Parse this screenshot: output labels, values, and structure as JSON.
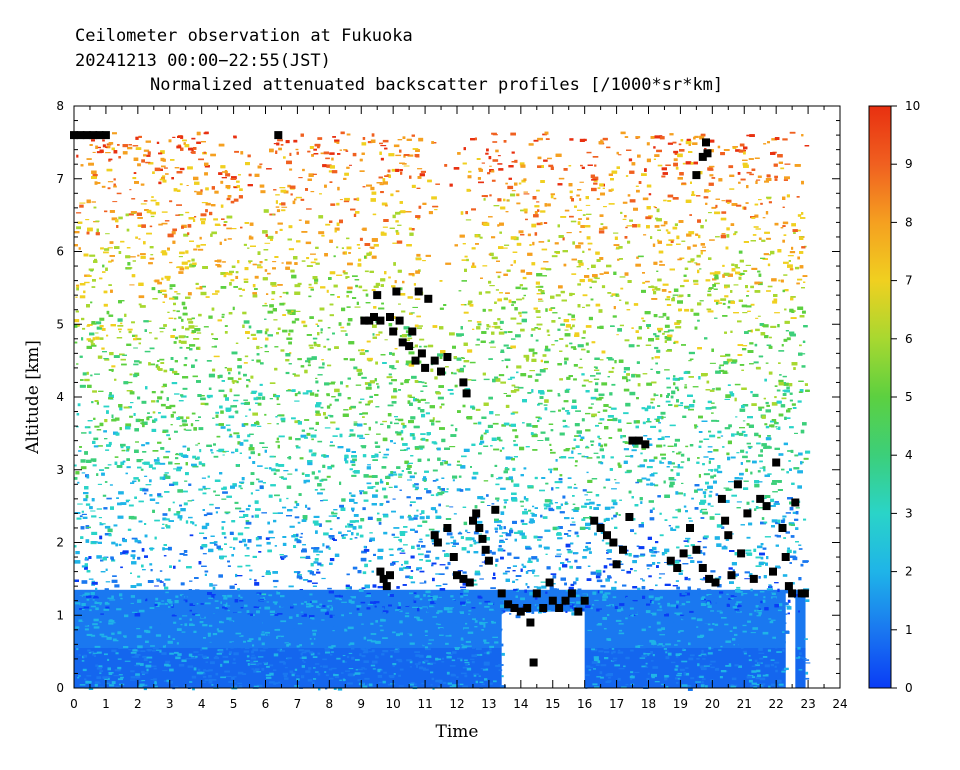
{
  "chart_data": {
    "type": "heatmap",
    "title_line1": "Ceilometer observation at Fukuoka",
    "title_line2": "20241213  00:00−22:55(JST)",
    "title_line3": "Normalized attenuated backscatter profiles [/1000*sr*km]",
    "xlabel": "Time",
    "ylabel": "Altitude [km]",
    "xlim": [
      0,
      24
    ],
    "ylim": [
      0,
      8
    ],
    "x_ticks": [
      "0",
      "1",
      "2",
      "3",
      "4",
      "5",
      "6",
      "7",
      "8",
      "9",
      "10",
      "11",
      "12",
      "13",
      "14",
      "15",
      "16",
      "17",
      "18",
      "19",
      "20",
      "21",
      "22",
      "23",
      "24"
    ],
    "y_ticks": [
      "0",
      "1",
      "2",
      "3",
      "4",
      "5",
      "6",
      "7",
      "8"
    ],
    "colorbar": {
      "range": [
        0,
        10
      ],
      "ticks": [
        "0",
        "1",
        "2",
        "3",
        "4",
        "5",
        "6",
        "7",
        "8",
        "9",
        "10"
      ],
      "colors": [
        "#0a3cf5",
        "#1a78f0",
        "#1fb4e8",
        "#2ad4c8",
        "#3ccf7a",
        "#5cd040",
        "#a8d830",
        "#f0d020",
        "#f5a020",
        "#f06020",
        "#e83010"
      ]
    },
    "data_end_time": 22.92,
    "cloud_base_points": [
      [
        0.0,
        7.6
      ],
      [
        0.2,
        7.6
      ],
      [
        0.4,
        7.6
      ],
      [
        0.6,
        7.6
      ],
      [
        0.8,
        7.6
      ],
      [
        1.0,
        7.6
      ],
      [
        6.4,
        7.6
      ],
      [
        9.1,
        5.05
      ],
      [
        9.25,
        5.05
      ],
      [
        9.4,
        5.1
      ],
      [
        9.5,
        5.4
      ],
      [
        9.6,
        5.05
      ],
      [
        9.9,
        5.1
      ],
      [
        10.0,
        4.9
      ],
      [
        10.1,
        5.45
      ],
      [
        10.2,
        5.05
      ],
      [
        10.3,
        4.75
      ],
      [
        10.5,
        4.7
      ],
      [
        10.6,
        4.9
      ],
      [
        10.7,
        4.5
      ],
      [
        10.8,
        5.45
      ],
      [
        10.9,
        4.6
      ],
      [
        11.0,
        4.4
      ],
      [
        11.1,
        5.35
      ],
      [
        11.3,
        4.5
      ],
      [
        11.5,
        4.35
      ],
      [
        11.7,
        4.55
      ],
      [
        12.2,
        4.2
      ],
      [
        12.3,
        4.05
      ],
      [
        9.6,
        1.6
      ],
      [
        9.7,
        1.5
      ],
      [
        9.8,
        1.4
      ],
      [
        9.9,
        1.55
      ],
      [
        11.3,
        2.1
      ],
      [
        11.4,
        2.0
      ],
      [
        11.7,
        2.2
      ],
      [
        11.9,
        1.8
      ],
      [
        12.0,
        1.55
      ],
      [
        12.2,
        1.5
      ],
      [
        12.4,
        1.45
      ],
      [
        12.5,
        2.3
      ],
      [
        12.6,
        2.4
      ],
      [
        12.7,
        2.2
      ],
      [
        12.8,
        2.05
      ],
      [
        12.9,
        1.9
      ],
      [
        13.0,
        1.75
      ],
      [
        13.2,
        2.45
      ],
      [
        13.4,
        1.3
      ],
      [
        13.6,
        1.15
      ],
      [
        13.8,
        1.1
      ],
      [
        14.0,
        1.05
      ],
      [
        14.2,
        1.1
      ],
      [
        14.3,
        0.9
      ],
      [
        14.5,
        1.3
      ],
      [
        14.7,
        1.1
      ],
      [
        14.9,
        1.45
      ],
      [
        15.0,
        1.2
      ],
      [
        15.2,
        1.1
      ],
      [
        15.4,
        1.2
      ],
      [
        15.6,
        1.3
      ],
      [
        15.8,
        1.05
      ],
      [
        16.0,
        1.2
      ],
      [
        14.4,
        0.35
      ],
      [
        16.3,
        2.3
      ],
      [
        16.5,
        2.2
      ],
      [
        16.7,
        2.1
      ],
      [
        16.9,
        2.0
      ],
      [
        17.0,
        1.7
      ],
      [
        17.2,
        1.9
      ],
      [
        17.4,
        2.35
      ],
      [
        17.5,
        3.4
      ],
      [
        17.7,
        3.4
      ],
      [
        17.9,
        3.35
      ],
      [
        19.5,
        7.05
      ],
      [
        19.7,
        7.3
      ],
      [
        19.8,
        7.5
      ],
      [
        19.85,
        7.35
      ],
      [
        18.7,
        1.75
      ],
      [
        18.9,
        1.65
      ],
      [
        19.1,
        1.85
      ],
      [
        19.3,
        2.2
      ],
      [
        19.5,
        1.9
      ],
      [
        19.7,
        1.65
      ],
      [
        19.9,
        1.5
      ],
      [
        20.1,
        1.45
      ],
      [
        20.3,
        2.6
      ],
      [
        20.4,
        2.3
      ],
      [
        20.5,
        2.1
      ],
      [
        20.6,
        1.55
      ],
      [
        20.8,
        2.8
      ],
      [
        20.9,
        1.85
      ],
      [
        21.1,
        2.4
      ],
      [
        21.3,
        1.5
      ],
      [
        21.5,
        2.6
      ],
      [
        21.7,
        2.5
      ],
      [
        21.9,
        1.6
      ],
      [
        22.0,
        3.1
      ],
      [
        22.2,
        2.2
      ],
      [
        22.3,
        1.8
      ],
      [
        22.4,
        1.4
      ],
      [
        22.5,
        1.3
      ],
      [
        22.6,
        2.55
      ],
      [
        22.8,
        1.3
      ],
      [
        22.9,
        1.3
      ]
    ]
  }
}
